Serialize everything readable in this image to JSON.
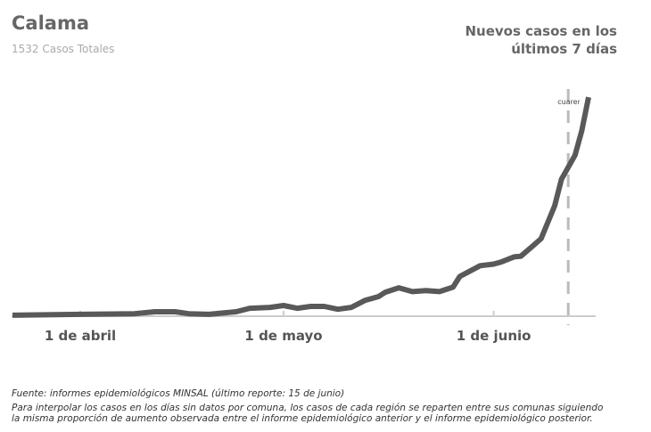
{
  "header": {
    "title": "Calama",
    "subtitle": "1532 Casos Totales",
    "right_title": "Nuevos casos en los últimos 7 días"
  },
  "chart_data": {
    "type": "line",
    "title": "Nuevos casos en los últimos 7 días",
    "x_ticks": [
      {
        "date": "2020-04-01",
        "label": "1 de abril"
      },
      {
        "date": "2020-05-01",
        "label": "1 de mayo"
      },
      {
        "date": "2020-06-01",
        "label": "1 de junio"
      }
    ],
    "annotation": {
      "date": "2020-06-12",
      "label": "cuarentena"
    },
    "ylim": [
      0,
      700
    ],
    "grid": false,
    "line_color": "#595959",
    "series": [
      {
        "x": [
          "2020-03-22",
          "2020-04-01",
          "2020-04-09",
          "2020-04-12",
          "2020-04-15",
          "2020-04-17",
          "2020-04-20",
          "2020-04-24",
          "2020-04-26",
          "2020-04-29",
          "2020-05-01",
          "2020-05-03",
          "2020-05-05",
          "2020-05-07",
          "2020-05-09",
          "2020-05-11",
          "2020-05-13",
          "2020-05-15",
          "2020-05-16",
          "2020-05-18",
          "2020-05-20",
          "2020-05-22",
          "2020-05-24",
          "2020-05-26",
          "2020-05-27",
          "2020-05-30",
          "2020-06-01",
          "2020-06-02",
          "2020-06-04",
          "2020-06-05",
          "2020-06-07",
          "2020-06-08",
          "2020-06-10",
          "2020-06-11",
          "2020-06-13",
          "2020-06-14",
          "2020-06-15"
        ],
        "values": [
          3,
          6,
          8,
          14,
          14,
          8,
          6,
          14,
          25,
          28,
          34,
          25,
          31,
          31,
          22,
          28,
          50,
          62,
          76,
          90,
          78,
          81,
          78,
          92,
          126,
          160,
          165,
          171,
          188,
          190,
          227,
          246,
          350,
          434,
          510,
          588,
          694
        ]
      }
    ]
  },
  "footer": {
    "source": "Fuente: informes epidemiológicos MINSAL (último reporte: 15 de junio)",
    "note_line1": "Para interpolar los casos en los días sin datos por comuna, los casos de cada región se reparten entre sus comunas siguiendo",
    "note_line2": "la misma proporción de aumento observada entre el informe epidemiológico anterior y el informe epidemiológico posterior."
  }
}
